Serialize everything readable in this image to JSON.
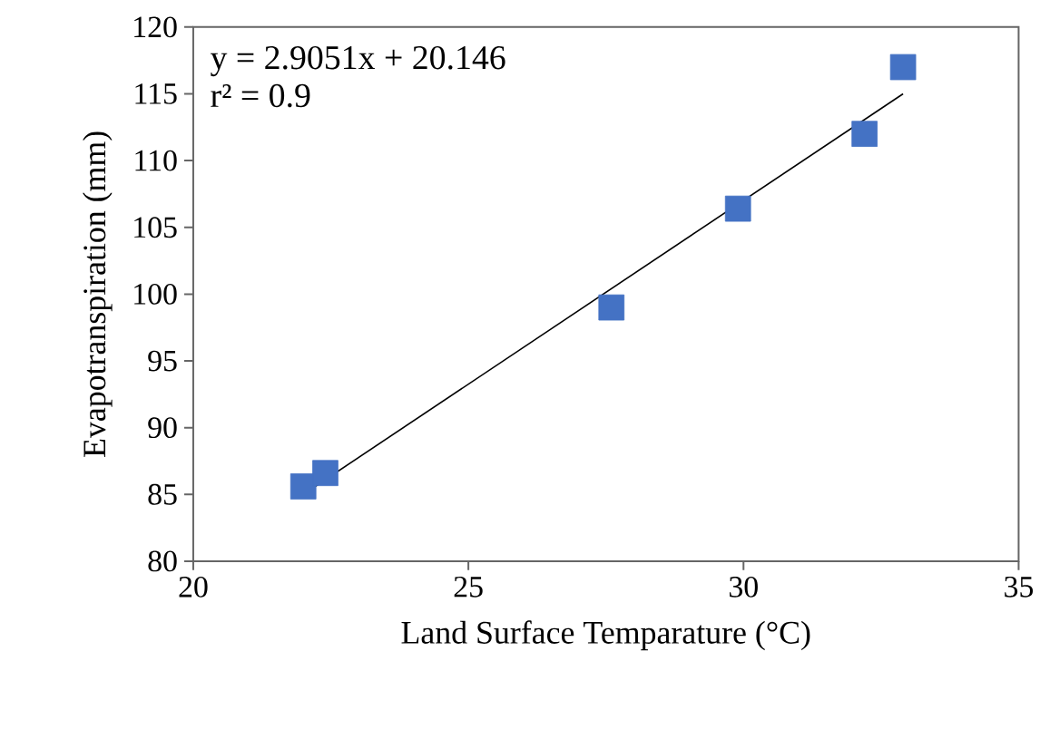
{
  "chart_data": {
    "type": "scatter",
    "xlabel": "Land Surface Temparature (°C)",
    "ylabel": "Evapotranspiration (mm)",
    "xlim": [
      20,
      35
    ],
    "xticks": [
      20,
      25,
      30,
      35
    ],
    "ylim": [
      80,
      120
    ],
    "yticks": [
      80,
      85,
      90,
      95,
      100,
      105,
      110,
      115,
      120
    ],
    "marker": "square",
    "series": [
      {
        "color": "#4472c4",
        "x": [
          22.0,
          22.4,
          27.6,
          29.9,
          32.2,
          32.9
        ],
        "values": [
          85.6,
          86.6,
          99.0,
          106.4,
          112.0,
          117.0
        ]
      },
      {
        "type": "line",
        "color": "#000000",
        "line_style": "solid",
        "marker": "none",
        "x": [
          22.0,
          32.9
        ],
        "values": [
          85.0,
          115.0
        ]
      }
    ],
    "annotations": [
      "y = 2.9051x + 20.146",
      "r² = 0.9"
    ]
  }
}
